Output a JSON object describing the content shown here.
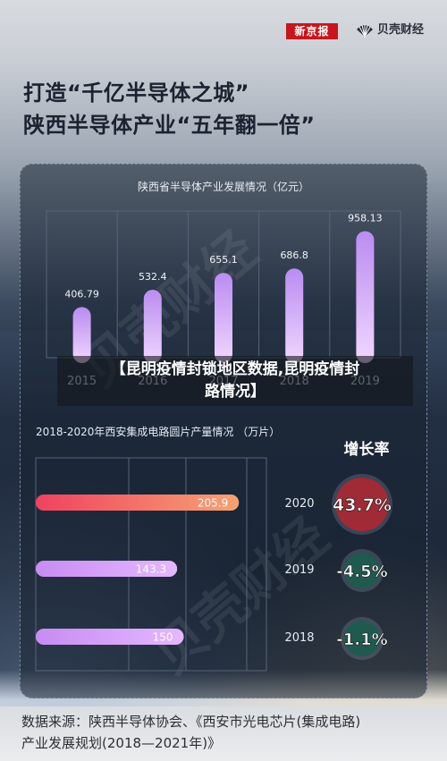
{
  "header": {
    "logo_left": "新京报",
    "logo_right": "贝壳财经"
  },
  "title": {
    "line1": "打造“千亿半导体之城”",
    "line2": "陕西半导体产业“五年翻一倍”"
  },
  "overlay_caption": {
    "line1": "【昆明疫情封锁地区数据,昆明疫情封",
    "line2": "路情况】"
  },
  "watermark_text": "贝壳财经",
  "chart_data": [
    {
      "type": "bar",
      "title": "陕西省半导体产业发展情况（亿元）",
      "categories": [
        "2015",
        "2016",
        "2017",
        "2018",
        "2019"
      ],
      "values": [
        406.79,
        532.4,
        655.1,
        686.8,
        958.13
      ],
      "value_labels": [
        "406.79",
        "532.4",
        "655.1",
        "686.8",
        "958.13"
      ],
      "ylim": [
        0,
        1000
      ],
      "grid": true,
      "colors": [
        "#c9a0f2",
        "#e9c3ff"
      ]
    },
    {
      "type": "bar",
      "orientation": "horizontal",
      "title": "2018-2020年西安集成电路圆片产量情况 （万片）",
      "categories": [
        "2020",
        "2019",
        "2018"
      ],
      "values": [
        205.9,
        143.3,
        150
      ],
      "value_labels": [
        "205.9",
        "143.3",
        "150"
      ],
      "xlim": [
        0,
        270
      ],
      "grid": true,
      "growth_header": "增长率",
      "growth_rates": [
        "43.7%",
        "-4.5%",
        "-1.1%"
      ],
      "growth_colors": [
        "#a02a35",
        "#1f5a4f",
        "#1f5a4f"
      ],
      "bar_colors": [
        "#f2546a",
        "#c99cf3",
        "#c99cf3"
      ]
    }
  ],
  "footer": {
    "line1": "数据来源：陕西半导体协会、《西安市光电芯片(集成电路)",
    "line2": "产业发展规划(2018—2021年)》"
  }
}
